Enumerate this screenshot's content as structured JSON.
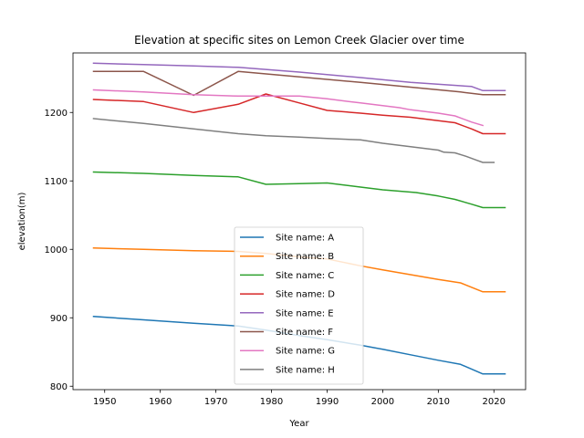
{
  "chart_data": {
    "type": "line",
    "title": "Elevation at specific sites on Lemon Creek Glacier over time",
    "xlabel": "Year",
    "ylabel": "elevation(m)",
    "xlim": [
      1944.3,
      2025.7
    ],
    "ylim": [
      795,
      1287
    ],
    "xticks": [
      1950,
      1960,
      1970,
      1980,
      1990,
      2000,
      2010,
      2020
    ],
    "yticks": [
      800,
      900,
      1000,
      1100,
      1200
    ],
    "legend_position": "lower center",
    "series": [
      {
        "name": "Site name: A",
        "color": "#1f77b4",
        "x": [
          1948,
          1957,
          1966,
          1974,
          1979,
          1985,
          1990,
          1996,
          2000,
          2005,
          2010,
          2014,
          2018,
          2022
        ],
        "y": [
          902,
          897,
          892,
          888,
          882,
          874,
          868,
          860,
          854,
          846,
          838,
          832,
          818,
          818
        ]
      },
      {
        "name": "Site name: B",
        "color": "#ff7f0e",
        "x": [
          1948,
          1957,
          1966,
          1974,
          1979,
          1985,
          1990,
          1996,
          2000,
          2005,
          2010,
          2014,
          2018,
          2022
        ],
        "y": [
          1002,
          1000,
          998,
          997,
          994,
          989,
          986,
          976,
          970,
          963,
          956,
          951,
          938,
          938
        ]
      },
      {
        "name": "Site name: C",
        "color": "#2ca02c",
        "x": [
          1948,
          1957,
          1966,
          1974,
          1979,
          1985,
          1990,
          1996,
          2000,
          2003,
          2006,
          2010,
          2013,
          2016,
          2018,
          2022
        ],
        "y": [
          1113,
          1111,
          1108,
          1106,
          1095,
          1096,
          1097,
          1091,
          1087,
          1085,
          1083,
          1078,
          1073,
          1066,
          1061,
          1061
        ]
      },
      {
        "name": "Site name: D",
        "color": "#d62728",
        "x": [
          1948,
          1957,
          1966,
          1974,
          1979,
          1985,
          1990,
          1996,
          2000,
          2005,
          2010,
          2013,
          2016,
          2018,
          2022
        ],
        "y": [
          1219,
          1216,
          1200,
          1212,
          1227,
          1214,
          1203,
          1199,
          1196,
          1193,
          1188,
          1185,
          1176,
          1169,
          1169
        ]
      },
      {
        "name": "Site name: E",
        "color": "#9467bd",
        "x": [
          1948,
          1957,
          1966,
          1974,
          1985,
          1996,
          2005,
          2016,
          2018,
          2022
        ],
        "y": [
          1272,
          1270,
          1268,
          1266,
          1259,
          1251,
          1244,
          1238,
          1232,
          1232
        ]
      },
      {
        "name": "Site name: F",
        "color": "#8c564b",
        "x": [
          1948,
          1957,
          1966,
          1974,
          1985,
          1996,
          2005,
          2014,
          2018,
          2022
        ],
        "y": [
          1260,
          1260,
          1225,
          1260,
          1252,
          1244,
          1237,
          1230,
          1226,
          1226
        ]
      },
      {
        "name": "Site name: G",
        "color": "#e377c2",
        "x": [
          1948,
          1957,
          1966,
          1974,
          1979,
          1985,
          1990,
          1996,
          2000,
          2003,
          2005,
          2010,
          2013,
          2016,
          2018
        ],
        "y": [
          1233,
          1230,
          1226,
          1224,
          1224,
          1224,
          1220,
          1214,
          1210,
          1207,
          1204,
          1199,
          1195,
          1186,
          1181
        ]
      },
      {
        "name": "Site name: H",
        "color": "#7f7f7f",
        "x": [
          1948,
          1957,
          1966,
          1974,
          1979,
          1985,
          1990,
          1996,
          2000,
          2005,
          2010,
          2011,
          2013,
          2015,
          2017,
          2018,
          2020
        ],
        "y": [
          1191,
          1184,
          1176,
          1169,
          1166,
          1164,
          1162,
          1160,
          1155,
          1150,
          1145,
          1142,
          1141,
          1136,
          1130,
          1127,
          1127
        ]
      }
    ]
  }
}
